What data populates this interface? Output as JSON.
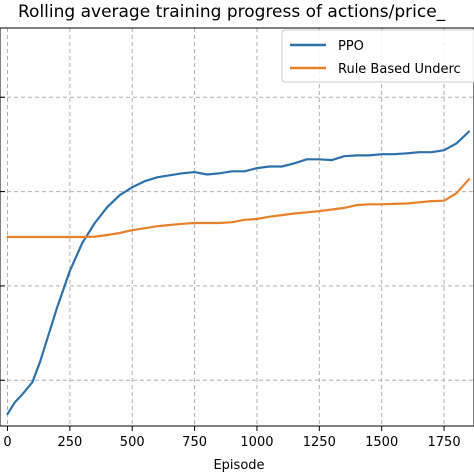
{
  "chart_data": {
    "type": "line",
    "title": "Rolling average training progress of actions/price_",
    "xlabel": "Episode",
    "ylabel": "",
    "xlim": [
      -30,
      1870
    ],
    "ylim": [
      0,
      1
    ],
    "xticks": [
      0,
      250,
      500,
      750,
      1000,
      1250,
      1500,
      1750
    ],
    "xtick_labels": [
      "0",
      "250",
      "500",
      "750",
      "1000",
      "1250",
      "1500",
      "1750"
    ],
    "yticks": [
      0.115,
      0.352,
      0.589,
      0.826
    ],
    "grid": true,
    "legend_position": "top-right",
    "colors": {
      "PPO": "#2e72ab",
      "Rule Based Underc": "#e8822a",
      "grid": "#b0b0b0"
    },
    "series": [
      {
        "name": "PPO",
        "x": [
          0,
          30,
          60,
          100,
          130,
          160,
          200,
          250,
          300,
          350,
          400,
          450,
          500,
          550,
          600,
          650,
          700,
          750,
          800,
          850,
          900,
          950,
          1000,
          1050,
          1100,
          1150,
          1200,
          1250,
          1300,
          1350,
          1400,
          1450,
          1500,
          1550,
          1600,
          1650,
          1700,
          1750,
          1800,
          1850
        ],
        "y": [
          0.03,
          0.06,
          0.08,
          0.11,
          0.16,
          0.22,
          0.3,
          0.39,
          0.46,
          0.51,
          0.55,
          0.58,
          0.6,
          0.615,
          0.625,
          0.63,
          0.635,
          0.638,
          0.632,
          0.635,
          0.64,
          0.64,
          0.648,
          0.652,
          0.652,
          0.66,
          0.67,
          0.67,
          0.668,
          0.678,
          0.68,
          0.68,
          0.683,
          0.683,
          0.685,
          0.688,
          0.688,
          0.693,
          0.71,
          0.74
        ]
      },
      {
        "name": "Rule Based Underc",
        "x": [
          0,
          100,
          200,
          300,
          350,
          400,
          450,
          500,
          550,
          600,
          650,
          700,
          750,
          800,
          850,
          900,
          950,
          1000,
          1050,
          1100,
          1150,
          1200,
          1250,
          1300,
          1350,
          1400,
          1450,
          1500,
          1550,
          1600,
          1650,
          1700,
          1750,
          1800,
          1850
        ],
        "y": [
          0.475,
          0.475,
          0.475,
          0.475,
          0.476,
          0.48,
          0.485,
          0.492,
          0.497,
          0.502,
          0.505,
          0.508,
          0.51,
          0.51,
          0.51,
          0.512,
          0.518,
          0.52,
          0.526,
          0.53,
          0.534,
          0.537,
          0.54,
          0.544,
          0.548,
          0.555,
          0.557,
          0.557,
          0.558,
          0.559,
          0.562,
          0.565,
          0.566,
          0.585,
          0.62
        ]
      }
    ]
  }
}
